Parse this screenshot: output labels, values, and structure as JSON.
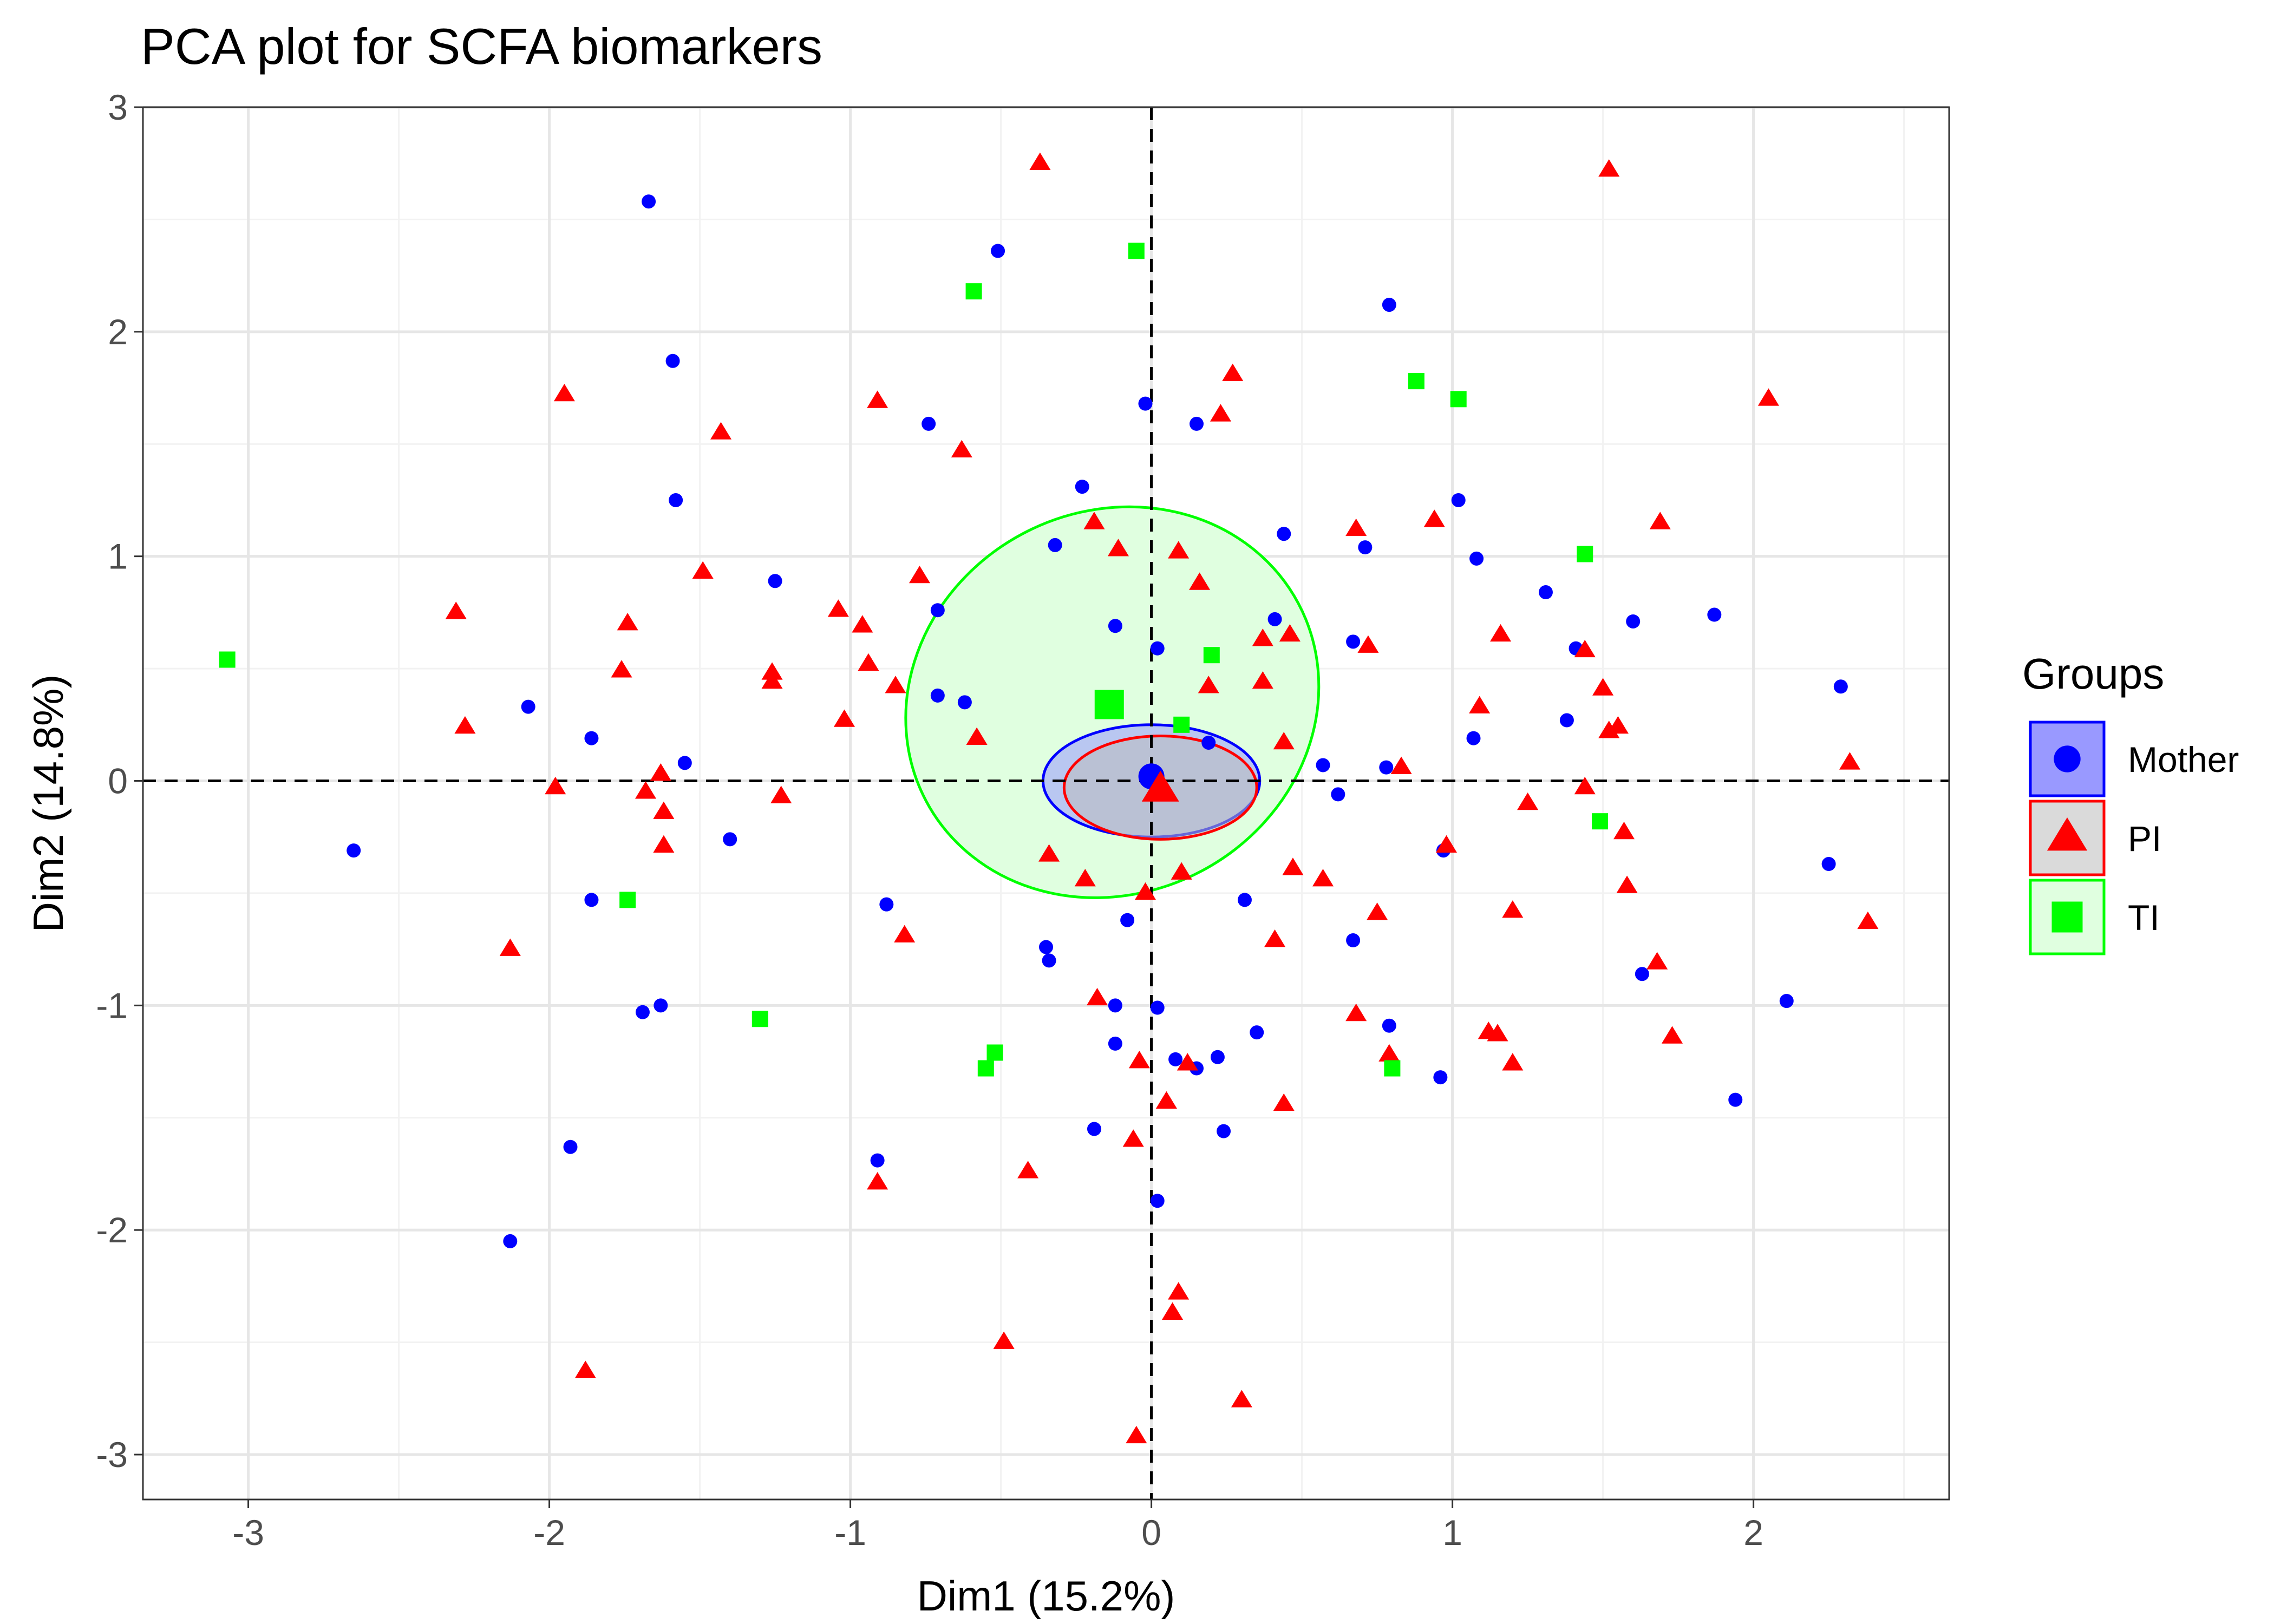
{
  "chart_data": {
    "type": "scatter",
    "title": "PCA plot for SCFA biomarkers",
    "xlabel": "Dim1 (15.2%)",
    "ylabel": "Dim2 (14.8%)",
    "xlim": [
      -3.35,
      2.65
    ],
    "ylim": [
      -3.2,
      3.0
    ],
    "x_ticks": [
      -3,
      -2,
      -1,
      0,
      1,
      2
    ],
    "y_ticks": [
      -3,
      -2,
      -1,
      0,
      1,
      2,
      3
    ],
    "x_tick_labels": [
      "-3",
      "-2",
      "-1",
      "0",
      "1",
      "2"
    ],
    "y_tick_labels": [
      "-3",
      "-2",
      "-1",
      "0",
      "1",
      "2",
      "3"
    ],
    "grid": true,
    "reference_lines": {
      "x": 0,
      "y": 0,
      "style": "dashed"
    },
    "legend": {
      "title": "Groups",
      "position": "right"
    },
    "series": [
      {
        "name": "Mother",
        "shape": "circle",
        "color": "#0000ff",
        "centroid": [
          0.0,
          0.02
        ],
        "ellipse": {
          "center": [
            0.0,
            0.0
          ],
          "rx": 0.36,
          "ry": 0.25,
          "angle_deg": 0,
          "fill": "#9999ff"
        },
        "points": [
          [
            -1.67,
            2.58
          ],
          [
            -0.51,
            2.36
          ],
          [
            -1.59,
            1.87
          ],
          [
            0.79,
            2.12
          ],
          [
            -0.02,
            1.68
          ],
          [
            0.15,
            1.59
          ],
          [
            -0.74,
            1.59
          ],
          [
            -1.58,
            1.25
          ],
          [
            -0.23,
            1.31
          ],
          [
            1.02,
            1.25
          ],
          [
            -0.32,
            1.05
          ],
          [
            0.44,
            1.1
          ],
          [
            0.71,
            1.04
          ],
          [
            1.08,
            0.99
          ],
          [
            -1.25,
            0.89
          ],
          [
            1.31,
            0.84
          ],
          [
            -0.71,
            0.76
          ],
          [
            0.41,
            0.72
          ],
          [
            1.6,
            0.71
          ],
          [
            1.87,
            0.74
          ],
          [
            -0.12,
            0.69
          ],
          [
            0.02,
            0.59
          ],
          [
            0.67,
            0.62
          ],
          [
            1.41,
            0.59
          ],
          [
            2.29,
            0.42
          ],
          [
            -0.71,
            0.38
          ],
          [
            -0.62,
            0.35
          ],
          [
            -2.07,
            0.33
          ],
          [
            1.38,
            0.27
          ],
          [
            -1.86,
            0.19
          ],
          [
            0.19,
            0.17
          ],
          [
            1.07,
            0.19
          ],
          [
            -1.55,
            0.08
          ],
          [
            0.57,
            0.07
          ],
          [
            0.78,
            0.06
          ],
          [
            0.62,
            -0.06
          ],
          [
            -1.4,
            -0.26
          ],
          [
            -2.65,
            -0.31
          ],
          [
            0.97,
            -0.31
          ],
          [
            2.25,
            -0.37
          ],
          [
            -1.86,
            -0.53
          ],
          [
            -0.88,
            -0.55
          ],
          [
            0.31,
            -0.53
          ],
          [
            -0.08,
            -0.62
          ],
          [
            -0.35,
            -0.74
          ],
          [
            -0.34,
            -0.8
          ],
          [
            0.67,
            -0.71
          ],
          [
            1.63,
            -0.86
          ],
          [
            -1.69,
            -1.03
          ],
          [
            -1.63,
            -1.0
          ],
          [
            -0.12,
            -1.0
          ],
          [
            0.02,
            -1.01
          ],
          [
            2.11,
            -0.98
          ],
          [
            0.79,
            -1.09
          ],
          [
            -0.12,
            -1.17
          ],
          [
            0.35,
            -1.12
          ],
          [
            0.08,
            -1.24
          ],
          [
            0.22,
            -1.23
          ],
          [
            0.15,
            -1.28
          ],
          [
            0.96,
            -1.32
          ],
          [
            -0.19,
            -1.55
          ],
          [
            0.24,
            -1.56
          ],
          [
            1.94,
            -1.42
          ],
          [
            -1.93,
            -1.63
          ],
          [
            -0.91,
            -1.69
          ],
          [
            0.02,
            -1.87
          ],
          [
            -2.13,
            -2.05
          ]
        ]
      },
      {
        "name": "PI",
        "shape": "triangle",
        "color": "#ff0000",
        "centroid": [
          0.03,
          -0.04
        ],
        "ellipse": {
          "center": [
            0.03,
            -0.03
          ],
          "rx": 0.32,
          "ry": 0.23,
          "angle_deg": 0,
          "fill": "#bbbbbb"
        },
        "points": [
          [
            -0.37,
            2.75
          ],
          [
            1.52,
            2.72
          ],
          [
            0.27,
            1.81
          ],
          [
            0.23,
            1.63
          ],
          [
            2.05,
            1.7
          ],
          [
            -1.95,
            1.72
          ],
          [
            -0.91,
            1.69
          ],
          [
            -1.43,
            1.55
          ],
          [
            -0.63,
            1.47
          ],
          [
            -0.19,
            1.15
          ],
          [
            0.68,
            1.12
          ],
          [
            0.94,
            1.16
          ],
          [
            1.69,
            1.15
          ],
          [
            -0.11,
            1.03
          ],
          [
            0.09,
            1.02
          ],
          [
            -1.49,
            0.93
          ],
          [
            -0.77,
            0.91
          ],
          [
            0.16,
            0.88
          ],
          [
            -2.31,
            0.75
          ],
          [
            -1.04,
            0.76
          ],
          [
            -1.74,
            0.7
          ],
          [
            -0.96,
            0.69
          ],
          [
            0.46,
            0.65
          ],
          [
            1.16,
            0.65
          ],
          [
            0.37,
            0.63
          ],
          [
            0.72,
            0.6
          ],
          [
            -1.76,
            0.49
          ],
          [
            -1.26,
            0.48
          ],
          [
            -0.94,
            0.52
          ],
          [
            1.44,
            0.58
          ],
          [
            -1.26,
            0.44
          ],
          [
            -0.85,
            0.42
          ],
          [
            0.19,
            0.42
          ],
          [
            0.37,
            0.44
          ],
          [
            1.5,
            0.41
          ],
          [
            1.09,
            0.33
          ],
          [
            -2.28,
            0.24
          ],
          [
            -1.02,
            0.27
          ],
          [
            1.55,
            0.24
          ],
          [
            1.52,
            0.22
          ],
          [
            0.44,
            0.17
          ],
          [
            -0.58,
            0.19
          ],
          [
            2.32,
            0.08
          ],
          [
            0.83,
            0.06
          ],
          [
            -1.63,
            0.03
          ],
          [
            -1.98,
            -0.03
          ],
          [
            -1.68,
            -0.05
          ],
          [
            -1.23,
            -0.07
          ],
          [
            1.44,
            -0.03
          ],
          [
            1.25,
            -0.1
          ],
          [
            -1.62,
            -0.14
          ],
          [
            1.57,
            -0.23
          ],
          [
            0.98,
            -0.29
          ],
          [
            -1.62,
            -0.29
          ],
          [
            -0.34,
            -0.33
          ],
          [
            0.47,
            -0.39
          ],
          [
            -0.22,
            -0.44
          ],
          [
            0.57,
            -0.44
          ],
          [
            0.1,
            -0.41
          ],
          [
            1.58,
            -0.47
          ],
          [
            -0.02,
            -0.5
          ],
          [
            0.75,
            -0.59
          ],
          [
            1.2,
            -0.58
          ],
          [
            2.38,
            -0.63
          ],
          [
            -0.82,
            -0.69
          ],
          [
            0.41,
            -0.71
          ],
          [
            -2.13,
            -0.75
          ],
          [
            1.68,
            -0.81
          ],
          [
            -0.18,
            -0.97
          ],
          [
            0.68,
            -1.04
          ],
          [
            1.12,
            -1.12
          ],
          [
            1.15,
            -1.13
          ],
          [
            1.73,
            -1.14
          ],
          [
            0.79,
            -1.22
          ],
          [
            -0.04,
            -1.25
          ],
          [
            0.12,
            -1.26
          ],
          [
            1.2,
            -1.26
          ],
          [
            0.05,
            -1.43
          ],
          [
            0.44,
            -1.44
          ],
          [
            -0.06,
            -1.6
          ],
          [
            -0.41,
            -1.74
          ],
          [
            -0.91,
            -1.79
          ],
          [
            0.09,
            -2.28
          ],
          [
            0.07,
            -2.37
          ],
          [
            -0.49,
            -2.5
          ],
          [
            -1.88,
            -2.63
          ],
          [
            0.3,
            -2.76
          ],
          [
            -0.05,
            -2.92
          ]
        ]
      },
      {
        "name": "TI",
        "shape": "square",
        "color": "#00ff00",
        "centroid": [
          -0.14,
          0.34
        ],
        "ellipse": {
          "center": [
            -0.13,
            0.35
          ],
          "rx": 0.7,
          "ry": 0.85,
          "angle_deg": -28,
          "fill": "#e0ffe0"
        },
        "points": [
          [
            -0.05,
            2.36
          ],
          [
            -0.59,
            2.18
          ],
          [
            0.88,
            1.78
          ],
          [
            1.02,
            1.7
          ],
          [
            1.44,
            1.01
          ],
          [
            -3.07,
            0.54
          ],
          [
            0.2,
            0.56
          ],
          [
            0.1,
            0.25
          ],
          [
            1.49,
            -0.18
          ],
          [
            -1.74,
            -0.53
          ],
          [
            -1.3,
            -1.06
          ],
          [
            -0.52,
            -1.21
          ],
          [
            -0.55,
            -1.28
          ],
          [
            0.8,
            -1.28
          ]
        ]
      }
    ]
  }
}
